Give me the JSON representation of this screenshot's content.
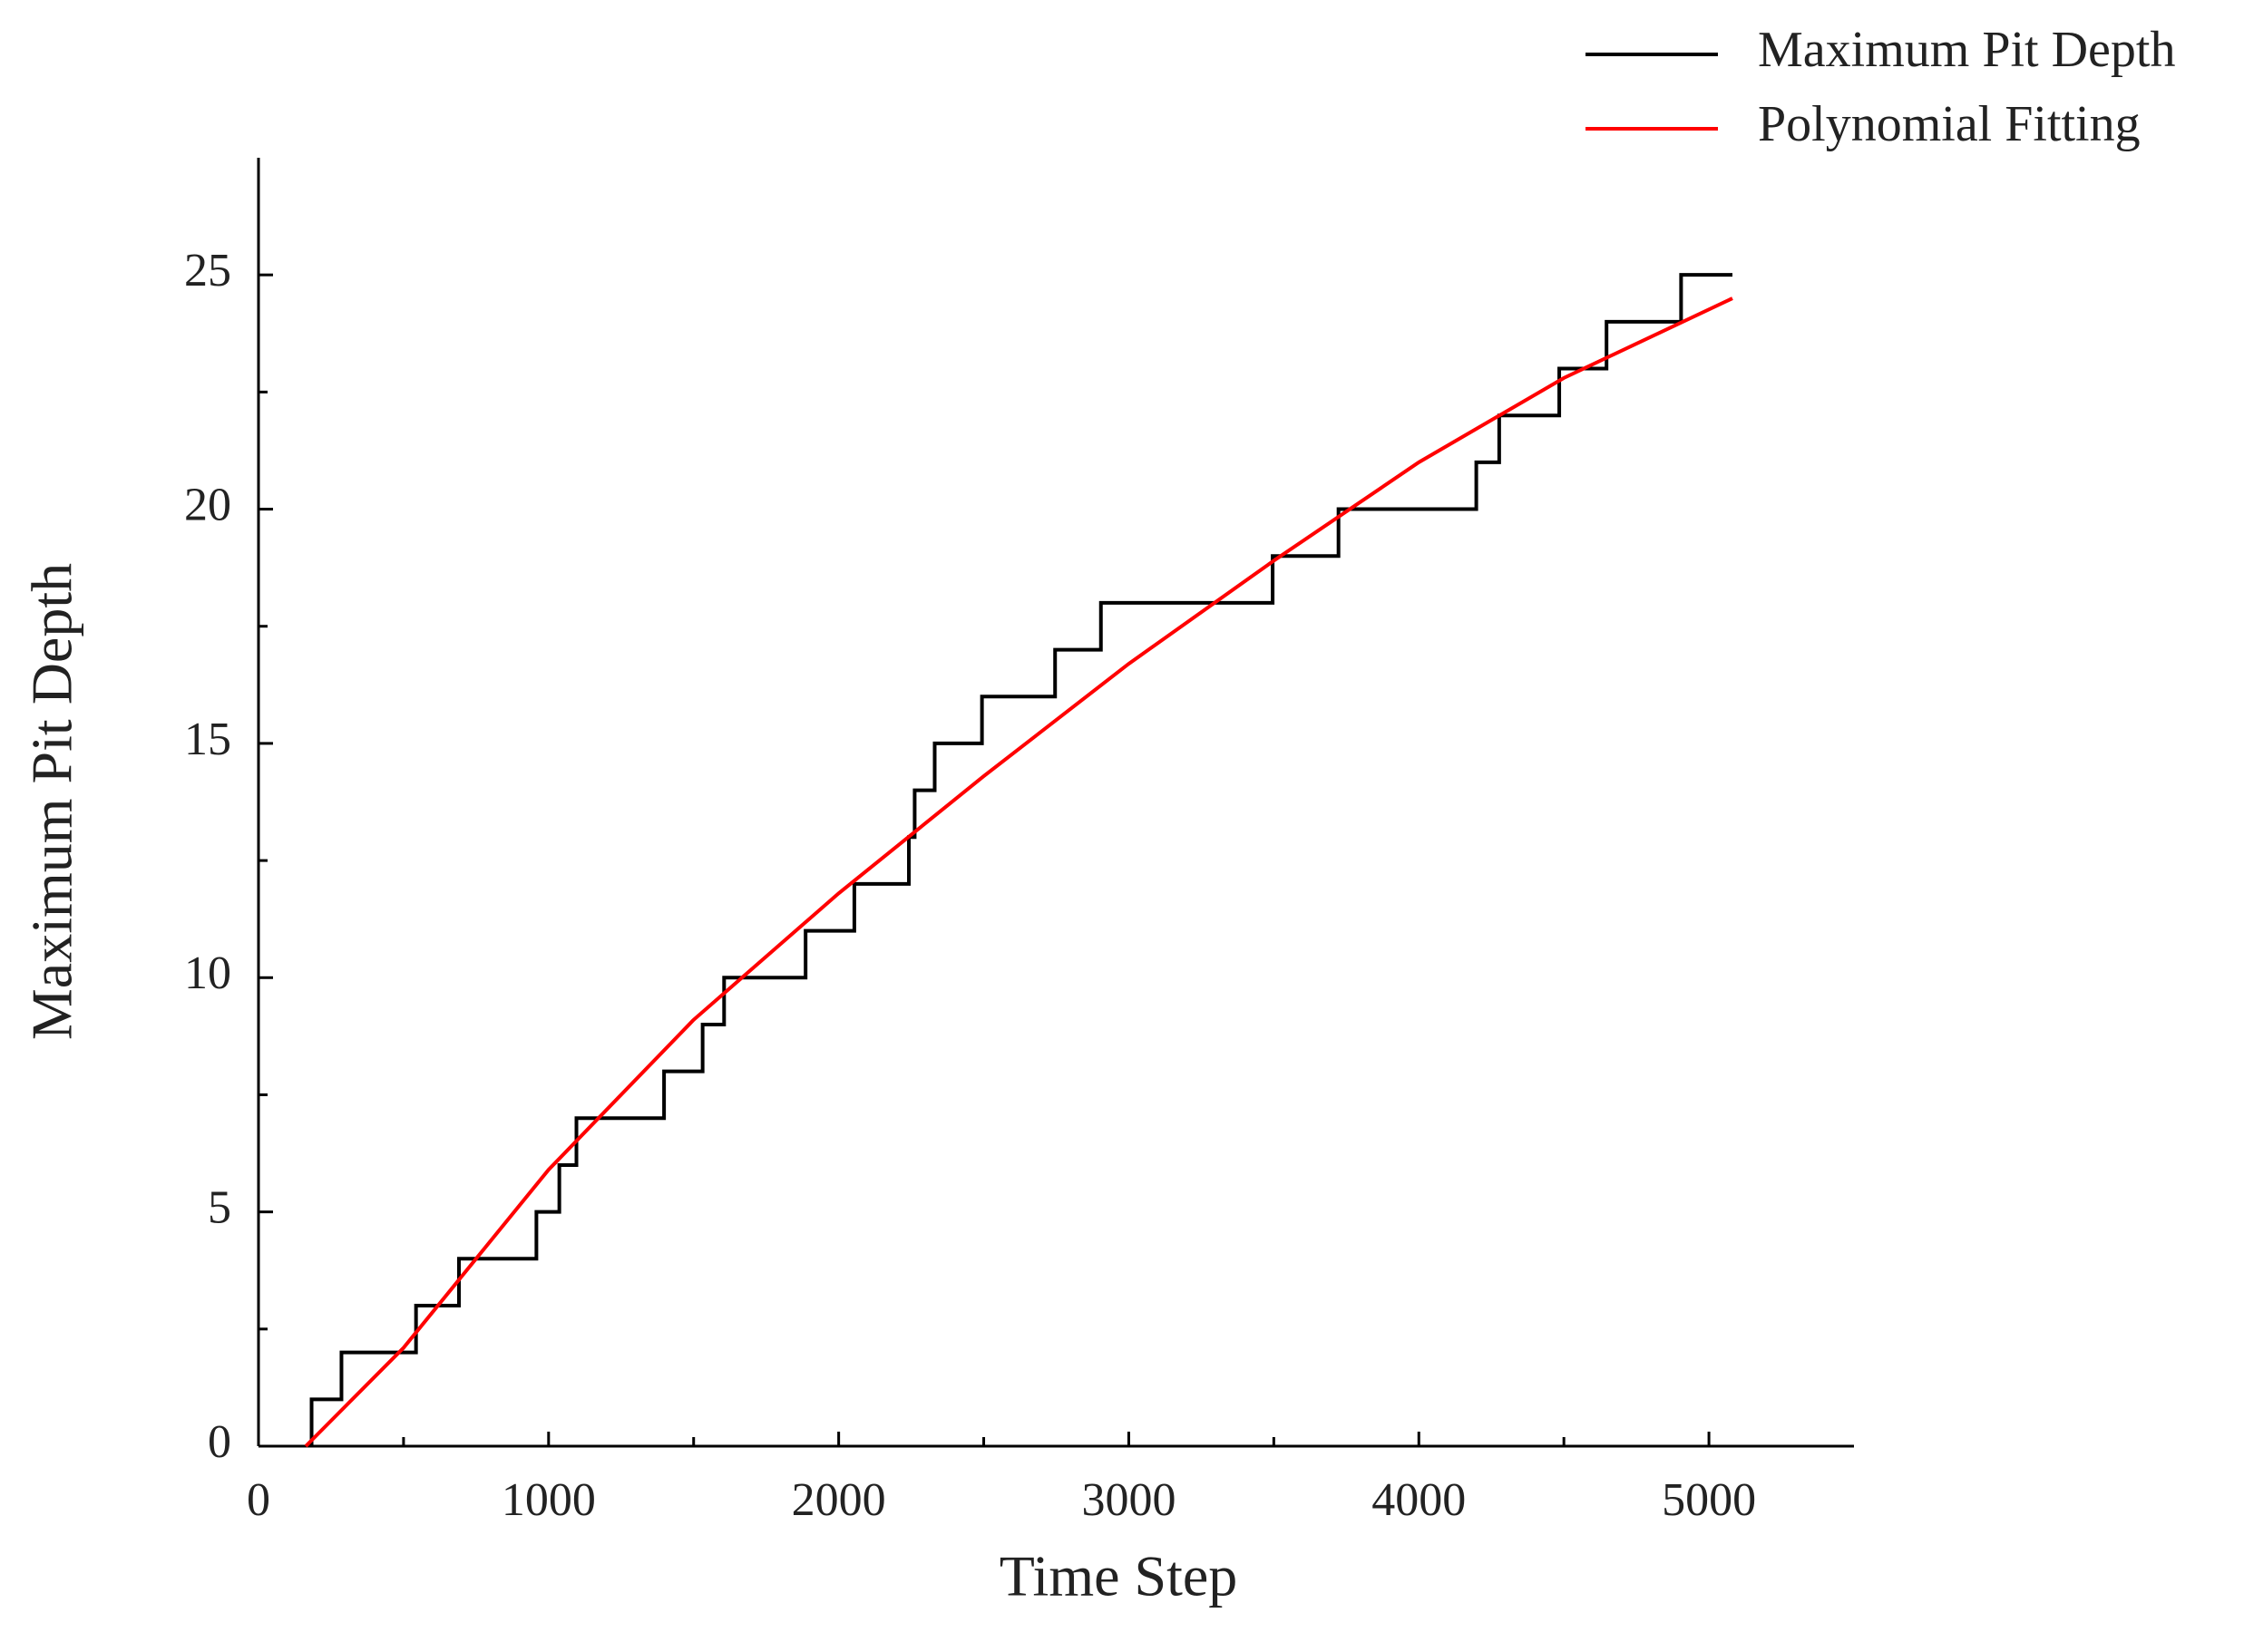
{
  "chart_data": {
    "type": "line",
    "x_label": "Time Step",
    "y_label": "Maximum Pit Depth",
    "xlim": [
      0,
      5500
    ],
    "ylim": [
      0,
      27.5
    ],
    "xticks": [
      0,
      1000,
      2000,
      3000,
      4000,
      5000
    ],
    "yticks": [
      0,
      5,
      10,
      15,
      20,
      25
    ],
    "xminorticks": [
      500,
      1500,
      2500,
      3500,
      4500
    ],
    "yminorticks": [
      2.5,
      7.5,
      12.5,
      17.5,
      22.5
    ],
    "grid": false,
    "legend": "top-right",
    "series": [
      {
        "name": "Maximum Pit Depth",
        "color": "#000000",
        "step": "post",
        "x": [
          183,
          183,
          286,
          543,
          691,
          958,
          1037,
          1096,
          1398,
          1531,
          1605,
          1886,
          2054,
          2242,
          2262,
          2331,
          2494,
          2746,
          2904,
          3496,
          3723,
          4198,
          4277,
          4484,
          4647,
          4904,
          5081
        ],
        "values": [
          0,
          1,
          2,
          3,
          4,
          5,
          6,
          7,
          8,
          9,
          10,
          11,
          12,
          13,
          14,
          15,
          16,
          17,
          18,
          19,
          20,
          21,
          22,
          23,
          24,
          25,
          25
        ]
      },
      {
        "name": "Polynomial Fitting",
        "color": "#ff0000",
        "x": [
          163,
          500,
          1000,
          1500,
          2000,
          2500,
          3000,
          3500,
          4000,
          4500,
          5081
        ],
        "values": [
          0,
          2.1,
          5.9,
          9.1,
          11.8,
          14.3,
          16.7,
          18.9,
          21.0,
          22.8,
          24.5
        ]
      }
    ]
  }
}
